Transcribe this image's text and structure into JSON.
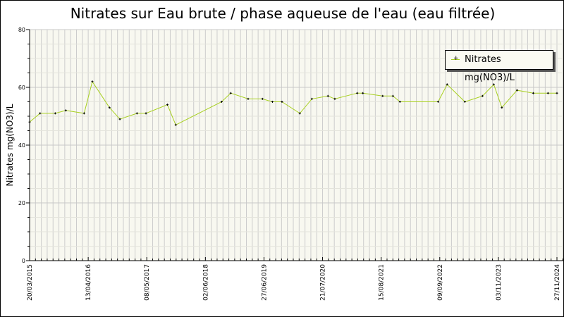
{
  "chart_data": {
    "type": "line",
    "title": "Nitrates sur Eau brute / phase aqueuse de l'eau (eau filtrée)",
    "xlabel": "",
    "ylabel": "Nitrates mg(NO3)/L",
    "ylim": [
      0,
      80
    ],
    "yticks": [
      "0",
      "20",
      "40",
      "60",
      "80"
    ],
    "xlim": [
      "2015-03-20",
      "2024-11-27"
    ],
    "xtick_labels": [
      "20/03/2015",
      "13/04/2016",
      "08/05/2017",
      "02/06/2018",
      "27/06/2019",
      "21/07/2020",
      "15/08/2021",
      "09/09/2022",
      "03/11/2023",
      "27/11/2024"
    ],
    "grid": true,
    "legend_position": "top-right",
    "colors": {
      "line": "#a8d020",
      "marker": "#000000",
      "background": "#f8f8f0",
      "grid": "#cccccc"
    },
    "series": [
      {
        "name": "Nitrates mg(NO3)/L",
        "x": [
          "2015-03-20",
          "2015-05-29",
          "2015-09-08",
          "2015-11-18",
          "2016-03-20",
          "2016-05-14",
          "2016-09-06",
          "2016-11-15",
          "2017-03-10",
          "2017-05-09",
          "2017-09-30",
          "2017-11-25",
          "2018-09-29",
          "2018-11-29",
          "2019-03-26",
          "2019-06-30",
          "2019-09-05",
          "2019-11-08",
          "2020-03-07",
          "2020-05-27",
          "2020-09-12",
          "2020-10-28",
          "2021-03-27",
          "2021-05-04",
          "2021-09-14",
          "2021-11-22",
          "2022-01-08",
          "2022-09-21",
          "2022-11-21",
          "2023-03-20",
          "2023-07-16",
          "2023-09-30",
          "2023-11-23",
          "2024-03-04",
          "2024-06-21",
          "2024-09-28",
          "2024-11-27"
        ],
        "values": [
          48,
          51,
          51,
          52,
          51,
          62,
          53,
          49,
          51,
          51,
          54,
          47,
          55,
          58,
          56,
          56,
          55,
          55,
          51,
          56,
          57,
          56,
          58,
          58,
          57,
          57,
          55,
          55,
          61,
          55,
          57,
          61,
          53,
          59,
          58,
          58,
          58
        ]
      }
    ]
  }
}
